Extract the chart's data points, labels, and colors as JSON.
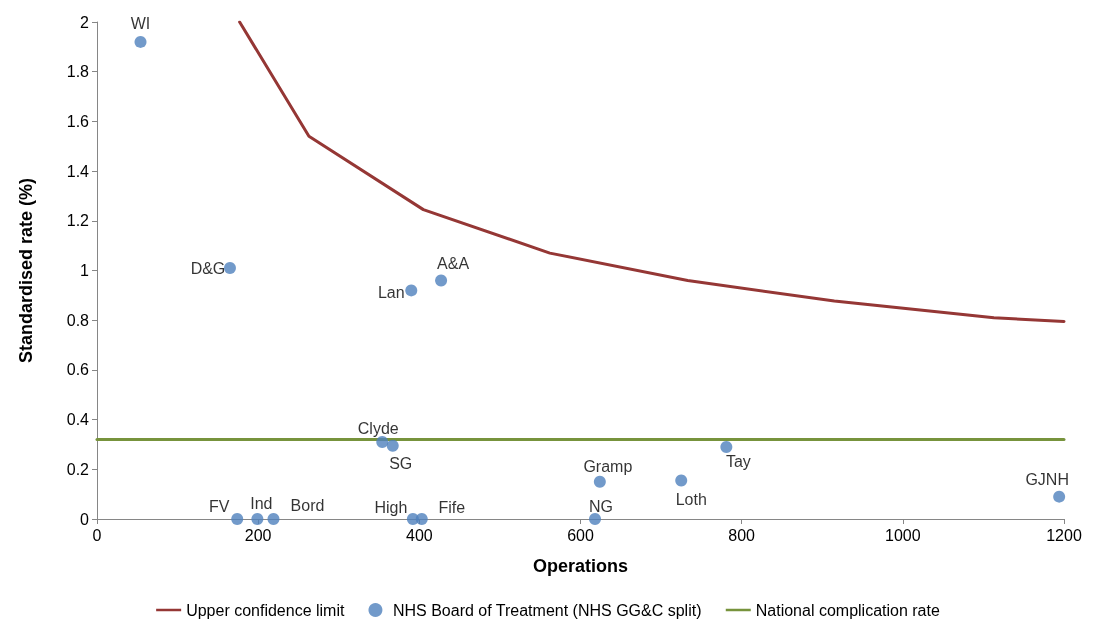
{
  "chart_data": {
    "type": "scatter",
    "xlabel": "Operations",
    "ylabel": "Standardised rate (%)",
    "xlim": [
      0,
      1200
    ],
    "xticks": [
      0,
      200,
      400,
      600,
      800,
      1000,
      1200
    ],
    "ylim": [
      0,
      2
    ],
    "yticks": [
      0,
      0.2,
      0.4,
      0.6,
      0.8,
      1,
      1.2,
      1.4,
      1.6,
      1.8,
      2
    ],
    "grid": false,
    "legend": "bottom",
    "series": [
      {
        "name": "Upper confidence limit",
        "type": "line",
        "marker": "none",
        "color": "#953735",
        "x": [
          177,
          263,
          405,
          562,
          733,
          915,
          1113,
          1200
        ],
        "values": [
          2,
          1.54,
          1.245,
          1.07,
          0.96,
          0.877,
          0.81,
          0.795
        ]
      },
      {
        "name": "NHS Board of Treatment (NHS GG&C split)",
        "type": "scatter",
        "marker": "circle",
        "color": "#4f81bd",
        "x": [
          54,
          165,
          390,
          427,
          354,
          367,
          174,
          199,
          219,
          392,
          403,
          618,
          624,
          725,
          781,
          1194
        ],
        "values": [
          1.92,
          1.01,
          0.92,
          0.96,
          0.31,
          0.295,
          0,
          0,
          0,
          0,
          0,
          0,
          0.15,
          0.155,
          0.29,
          0.09
        ]
      },
      {
        "name": "National complication rate",
        "type": "line",
        "marker": "none",
        "color": "#77933c",
        "x": [
          0,
          1200
        ],
        "values": [
          0.32,
          0.32
        ]
      }
    ],
    "annotations": [
      {
        "text": "WI",
        "x": 54,
        "y": 1.92
      },
      {
        "text": "D&G",
        "x": 165,
        "y": 1.01
      },
      {
        "text": "Lan",
        "x": 390,
        "y": 0.92
      },
      {
        "text": "A&A",
        "x": 427,
        "y": 0.96
      },
      {
        "text": "Clyde",
        "x": 354,
        "y": 0.31
      },
      {
        "text": "SG",
        "x": 367,
        "y": 0.295
      },
      {
        "text": "FV",
        "x": 174,
        "y": 0
      },
      {
        "text": "Ind",
        "x": 199,
        "y": 0
      },
      {
        "text": "Bord",
        "x": 219,
        "y": 0
      },
      {
        "text": "High",
        "x": 392,
        "y": 0
      },
      {
        "text": "Fife",
        "x": 403,
        "y": 0
      },
      {
        "text": "NG",
        "x": 618,
        "y": 0
      },
      {
        "text": "Gramp",
        "x": 624,
        "y": 0.15
      },
      {
        "text": "Loth",
        "x": 725,
        "y": 0.155
      },
      {
        "text": "Tay",
        "x": 781,
        "y": 0.29
      },
      {
        "text": "GJNH",
        "x": 1194,
        "y": 0.09
      }
    ]
  }
}
